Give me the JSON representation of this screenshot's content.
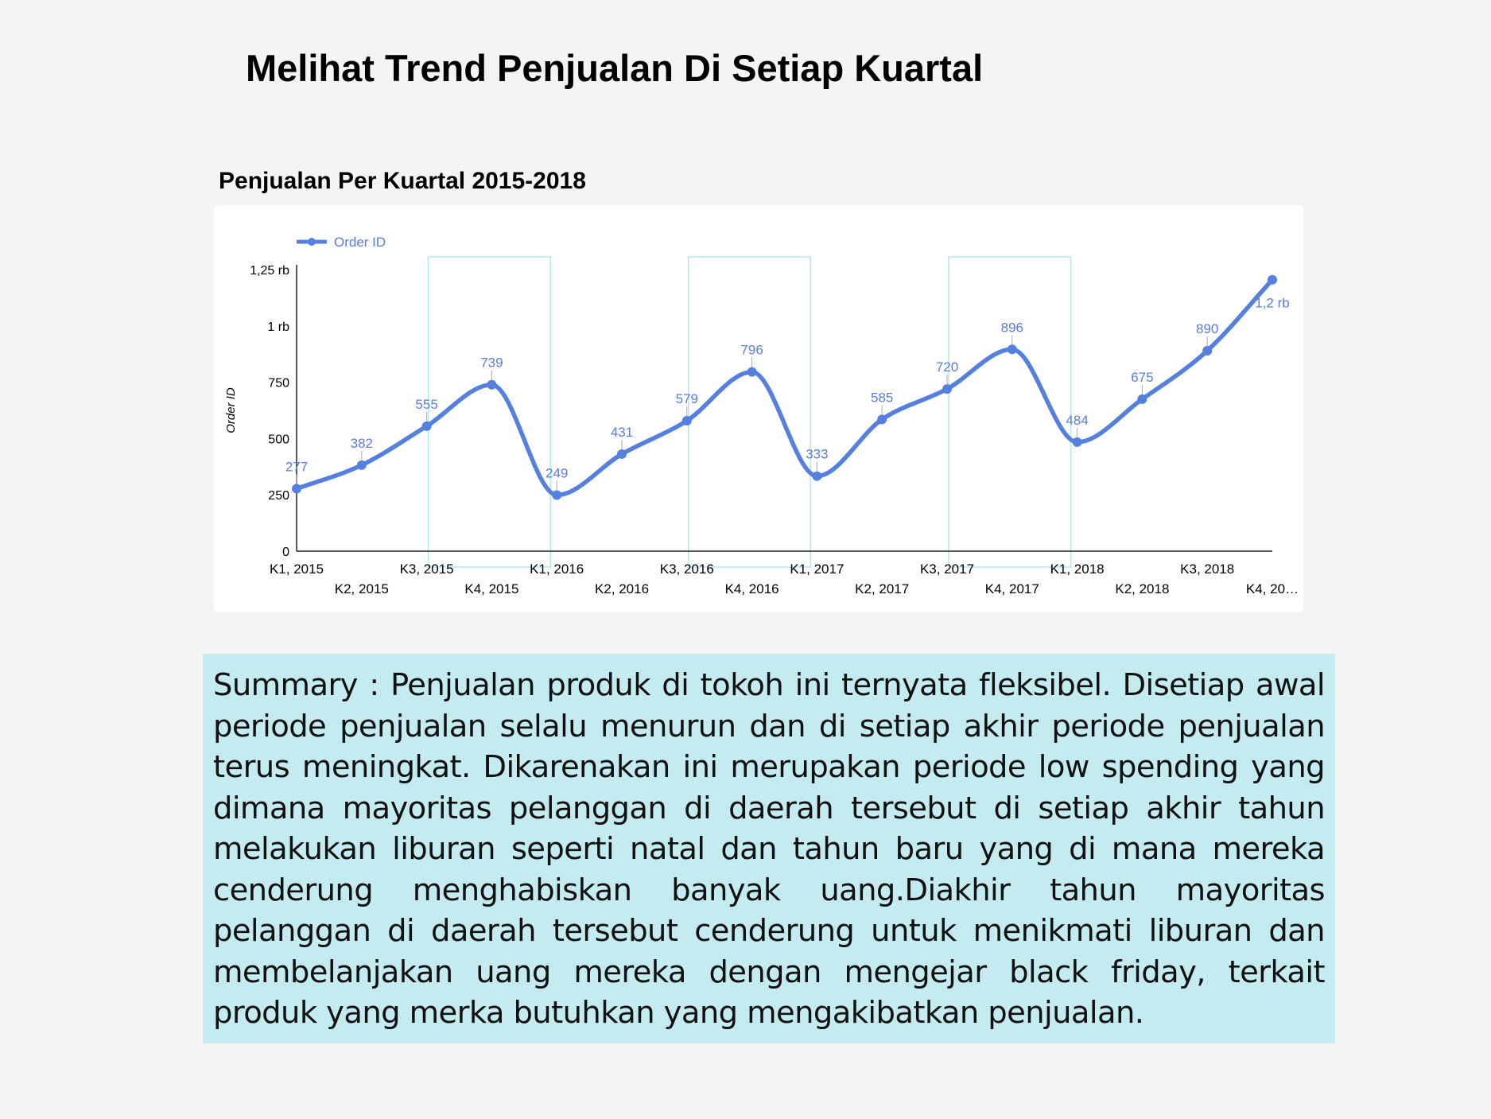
{
  "page": {
    "title": "Melihat Trend Penjualan Di Setiap Kuartal"
  },
  "summary": {
    "text": "Summary  : Penjualan produk di tokoh ini ternyata fleksibel. Disetiap awal periode penjualan selalu menurun dan di setiap akhir periode penjualan terus meningkat. Dikarenakan ini merupakan periode low spending yang dimana mayoritas pelanggan di daerah tersebut di setiap akhir tahun melakukan liburan seperti natal dan tahun baru yang di mana mereka cenderung menghabiskan banyak uang.Diakhir tahun mayoritas pelanggan di daerah tersebut cenderung untuk menikmati liburan dan membelanjakan uang mereka dengan mengejar black friday, terkait produk yang merka butuhkan yang mengakibatkan penjualan."
  },
  "chart_data": {
    "type": "line",
    "title": "Penjualan Per Kuartal 2015-2018",
    "ylabel": "Order ID",
    "xlabel": "",
    "legend": {
      "position": "top-left",
      "label": "Order ID"
    },
    "categories": [
      "K1, 2015",
      "K2, 2015",
      "K3, 2015",
      "K4, 2015",
      "K1, 2016",
      "K2, 2016",
      "K3, 2016",
      "K4, 2016",
      "K1, 2017",
      "K2, 2017",
      "K3, 2017",
      "K4, 2017",
      "K1, 2018",
      "K2, 2018",
      "K3, 2018",
      "K4, 20…"
    ],
    "series": [
      {
        "name": "Order ID",
        "values": [
          277,
          382,
          555,
          739,
          249,
          431,
          579,
          796,
          333,
          585,
          720,
          896,
          484,
          675,
          890,
          1205
        ],
        "labels": [
          "277",
          "382",
          "555",
          "739",
          "249",
          "431",
          "579",
          "796",
          "333",
          "585",
          "720",
          "896",
          "484",
          "675",
          "890",
          "1,2 rb"
        ]
      }
    ],
    "ylim": [
      0,
      1250
    ],
    "yticks": [
      {
        "value": 0,
        "label": "0"
      },
      {
        "value": 250,
        "label": "250"
      },
      {
        "value": 500,
        "label": "500"
      },
      {
        "value": 750,
        "label": "750"
      },
      {
        "value": 1000,
        "label": "1 rb"
      },
      {
        "value": 1250,
        "label": "1,25 rb"
      }
    ],
    "highlight_bands": [
      {
        "from": "K3, 2015",
        "to": "K1, 2016"
      },
      {
        "from": "K3, 2016",
        "to": "K1, 2017"
      },
      {
        "from": "K3, 2017",
        "to": "K1, 2018"
      }
    ],
    "grid": false,
    "colors": {
      "line": "#5580e0",
      "label": "#5b7dd6",
      "band": "#b5e6ec",
      "axis": "#222222"
    }
  }
}
